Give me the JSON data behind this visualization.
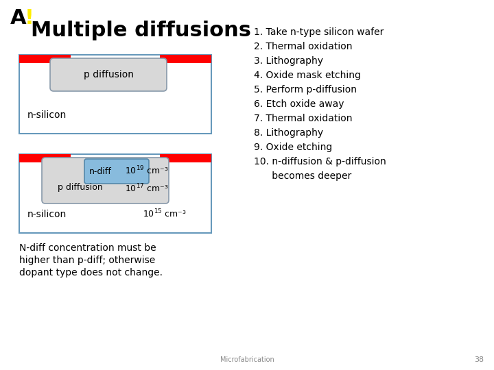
{
  "title": "Multiple diffusions",
  "logo_A": "A",
  "logo_exclaim": "!",
  "bg_color": "#ffffff",
  "diagram1": {
    "box_color": "#ddeeff",
    "box_edge": "#6699bb",
    "red_color": "#ff0000",
    "p_diff_color": "#d8d8d8",
    "p_diff_edge": "#8899aa",
    "label_p": "p diffusion",
    "label_n": "n-silicon"
  },
  "diagram2": {
    "box_color": "#ddeeff",
    "box_edge": "#6699bb",
    "red_color": "#ff0000",
    "p_diff_color": "#d8d8d8",
    "p_diff_edge": "#8899aa",
    "n_diff_color": "#88bbdd",
    "n_diff_edge": "#5588aa",
    "label_ndiff": "n-diff",
    "label_p": "p diffusion",
    "label_n": "n-silicon"
  },
  "steps": [
    "1. Take n-type silicon wafer",
    "2. Thermal oxidation",
    "3. Lithography",
    "4. Oxide mask etching",
    "5. Perform p-diffusion",
    "6. Etch oxide away",
    "7. Thermal oxidation",
    "8. Lithography",
    "9. Oxide etching",
    "10. n-diffusion & p-diffusion",
    "      becomes deeper"
  ],
  "note_lines": [
    "N-diff concentration must be",
    "higher than p-diff; otherwise",
    "dopant type does not change."
  ],
  "footer": "Microfabrication",
  "page_num": "38"
}
